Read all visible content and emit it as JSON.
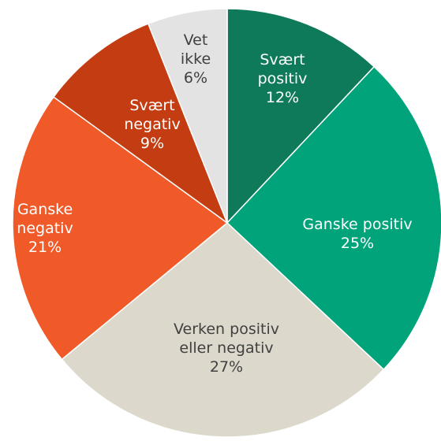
{
  "chart_data": {
    "type": "pie",
    "categories": [
      "Svært positiv",
      "Ganske positiv",
      "Verken positiv eller negativ",
      "Ganske negativ",
      "Svært negativ",
      "Vet ikke"
    ],
    "values": [
      12,
      25,
      27,
      21,
      9,
      6
    ],
    "value_labels": [
      "12%",
      "25%",
      "27%",
      "21%",
      "9%",
      "6%"
    ],
    "colors": [
      "#0e7a5a",
      "#00a37a",
      "#dcd9cc",
      "#f05a28",
      "#c43d12",
      "#e3e3e3"
    ],
    "label_colors": [
      "#ffffff",
      "#ffffff",
      "#404040",
      "#ffffff",
      "#ffffff",
      "#404040"
    ]
  }
}
